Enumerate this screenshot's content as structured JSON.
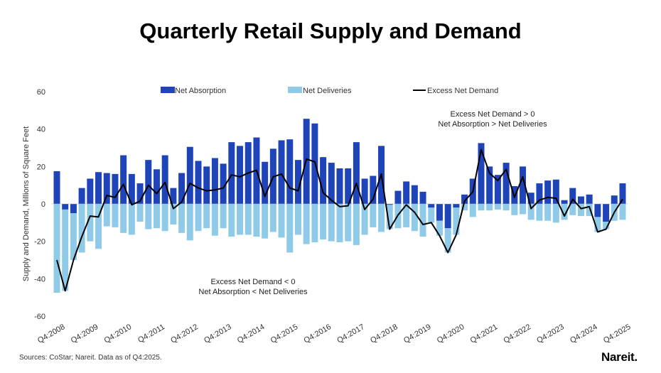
{
  "chart_data": {
    "type": "bar",
    "title": "Quarterly Retail Supply and Demand",
    "ylabel": "Supply and Demand, Millions of Square Feet",
    "xlabel": "",
    "ylim": [
      -60,
      60
    ],
    "yticks": [
      60,
      40,
      20,
      0,
      -20,
      -40,
      -60
    ],
    "grid": false,
    "legend": "top",
    "colors": {
      "Net Absorption": "#1f44b9",
      "Net Deliveries": "#8fcbe8",
      "Excess Net Demand": "#000000"
    },
    "x_tick_labels": [
      "Q4:2008",
      "Q4:2009",
      "Q4:2010",
      "Q4:2011",
      "Q4:2012",
      "Q4:2013",
      "Q4:2014",
      "Q4:2015",
      "Q4:2016",
      "Q4:2017",
      "Q4:2018",
      "Q4:2019",
      "Q4:2020",
      "Q4:2021",
      "Q4:2022",
      "Q4:2023",
      "Q4:2024",
      "Q4:2025"
    ],
    "first_quarter": "Q4:2008",
    "last_quarter": "Q4:2025",
    "series": [
      {
        "name": "Net Absorption",
        "type": "stacked-bar",
        "values": [
          17.5,
          -3,
          -5,
          8.5,
          13.5,
          17,
          16.5,
          16,
          26,
          16,
          11,
          23.5,
          18.5,
          26,
          8.5,
          16.5,
          30.5,
          23,
          20,
          24.5,
          21.5,
          33,
          31,
          33,
          35.5,
          22.5,
          29.5,
          34,
          34.5,
          23.5,
          45.5,
          43,
          25,
          22,
          19,
          19,
          33,
          13.5,
          15,
          31,
          -0.5,
          7,
          12,
          10,
          6.5,
          -2,
          -9,
          -13,
          -2,
          5,
          13.5,
          32.5,
          20,
          15.5,
          22,
          9.5,
          20,
          6,
          11,
          12.5,
          13,
          2,
          8.5,
          4,
          5,
          -7,
          -9.5,
          4.5,
          11
        ]
      },
      {
        "name": "Net Deliveries",
        "type": "stacked-bar",
        "values": [
          -47.5,
          -43.5,
          -25,
          -26,
          -20,
          -24,
          -12,
          -12.5,
          -15.5,
          -16.5,
          -9.5,
          -13.5,
          -13,
          -14.5,
          -11,
          -15.5,
          -19.5,
          -14.5,
          -13,
          -17,
          -13,
          -17.5,
          -16.5,
          -16.5,
          -17.5,
          -18.5,
          -15,
          -18,
          -26,
          -16.5,
          -21.5,
          -20.5,
          -19,
          -20,
          -20.5,
          -20,
          -22,
          -16.5,
          -12.5,
          -15,
          -13,
          -13,
          -12.5,
          -14.5,
          -17.5,
          -8,
          -8,
          -13,
          -14.5,
          -3.5,
          -7,
          -3.5,
          -3.5,
          -3,
          -3.5,
          -6,
          -5.5,
          -8.5,
          -9,
          -9,
          -10,
          -8.5,
          -6,
          -6.5,
          -6.5,
          -8,
          -4,
          -9,
          -8.5
        ]
      },
      {
        "name": "Excess Net Demand",
        "type": "line",
        "values": [
          -30,
          -46.5,
          -30,
          -17.5,
          -6.5,
          -7,
          4.5,
          3.5,
          10.5,
          -0.5,
          1.5,
          10,
          5.5,
          11.5,
          -2.5,
          1,
          11,
          8.5,
          7,
          7.5,
          8.5,
          15.5,
          14.5,
          16.5,
          18,
          4,
          14.5,
          16,
          8.5,
          7,
          24,
          22.5,
          6,
          2,
          -1.5,
          -1,
          11,
          -3,
          2.5,
          16,
          -13.5,
          -6,
          -0.5,
          -4.5,
          -11,
          -10,
          -17,
          -26,
          -16.5,
          1.5,
          6.5,
          29,
          16.5,
          12.5,
          18.5,
          3.5,
          14.5,
          -2.5,
          2,
          3.5,
          3,
          -6.5,
          2.5,
          -2.5,
          -1.5,
          -15,
          -13.5,
          -4.5,
          2.5
        ]
      }
    ],
    "annotations": [
      {
        "line1": "Excess Net Demand > 0",
        "line2": "Net Absorption > Net Deliveries"
      },
      {
        "line1": "Excess Net Demand < 0",
        "line2": "Net Absorption < Net Deliveries"
      }
    ]
  },
  "footer": {
    "sources": "Sources: CoStar; Nareit. Data as of Q4:2025.",
    "logo": "Nareit."
  }
}
